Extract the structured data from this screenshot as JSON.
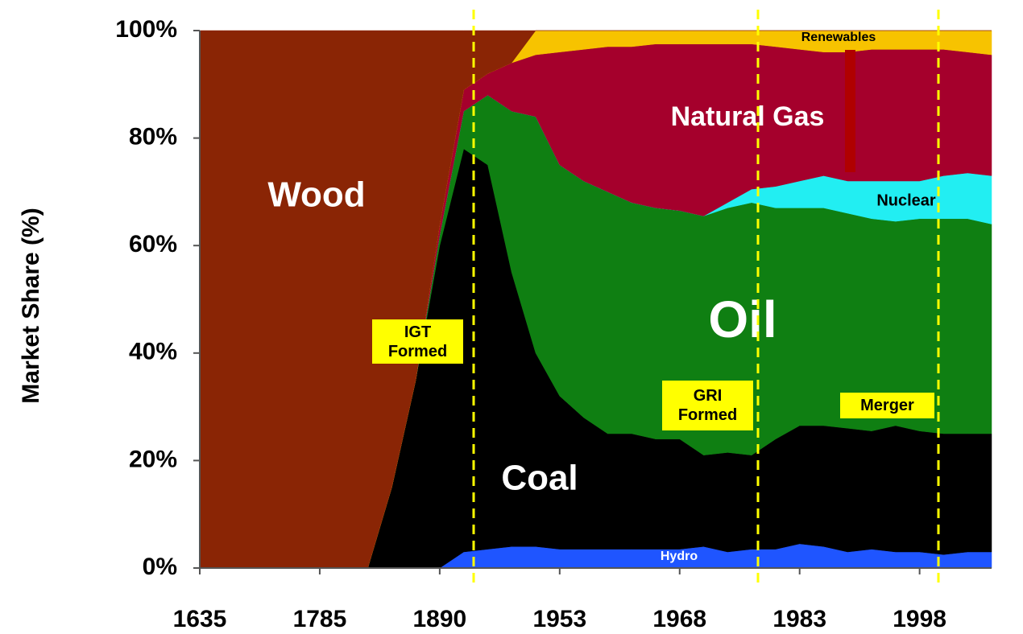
{
  "chart_data": {
    "type": "stacked_area",
    "y_label": "Market Share (%)",
    "categories": [
      "1635",
      null,
      null,
      null,
      null,
      "1785",
      null,
      null,
      null,
      null,
      "1890",
      null,
      null,
      null,
      null,
      "1953",
      null,
      null,
      null,
      null,
      "1968",
      null,
      null,
      null,
      null,
      "1983",
      null,
      null,
      null,
      null,
      "1998",
      null,
      null,
      null
    ],
    "series": [
      {
        "name": "Hydro",
        "color": "#1f55ff",
        "values": [
          0,
          0,
          0,
          0,
          0,
          0,
          0,
          0,
          0,
          0,
          0,
          3,
          3.5,
          4,
          4,
          3.5,
          3.5,
          3.5,
          3.5,
          3.5,
          3.5,
          4,
          3,
          3.5,
          3.5,
          4.5,
          4,
          3,
          3.5,
          3,
          3,
          2.5,
          3,
          3
        ]
      },
      {
        "name": "Coal",
        "color": "#000000",
        "values": [
          0,
          0,
          0,
          0,
          0,
          0,
          0,
          0,
          15,
          35,
          60,
          75,
          71.5,
          51,
          36,
          28.5,
          24.5,
          21.5,
          21.5,
          20.5,
          20.5,
          17,
          18.5,
          17.5,
          20.5,
          22,
          22.5,
          23,
          22,
          23.5,
          22.5,
          22.5,
          22,
          22
        ]
      },
      {
        "name": "Oil",
        "color": "#0f7f12",
        "values": [
          0,
          0,
          0,
          0,
          0,
          0,
          0,
          0,
          0,
          0,
          2,
          7,
          13,
          30,
          44,
          43,
          44,
          45,
          43,
          43,
          42.5,
          44.5,
          45.5,
          47,
          43,
          40.5,
          40.5,
          40,
          39.5,
          38,
          39.5,
          40,
          40,
          39
        ]
      },
      {
        "name": "Nuclear",
        "color": "#22eef2",
        "values": [
          0,
          0,
          0,
          0,
          0,
          0,
          0,
          0,
          0,
          0,
          0,
          0,
          0,
          0,
          0,
          0,
          0,
          0,
          0,
          0,
          0,
          0,
          1,
          2.5,
          4,
          5,
          6,
          6,
          7,
          7.5,
          7,
          8,
          8.5,
          9
        ]
      },
      {
        "name": "Natural Gas",
        "color": "#a5002c",
        "values": [
          0,
          0,
          0,
          0,
          0,
          0,
          0,
          0,
          0,
          0,
          2,
          4,
          4,
          9,
          11.5,
          21,
          24.5,
          27,
          29,
          30.5,
          31,
          32,
          29.5,
          27,
          26,
          24.5,
          23,
          24,
          24.5,
          24.5,
          24.5,
          23.5,
          22.5,
          22.5
        ]
      },
      {
        "name": "Renewables",
        "color": "#f7c300",
        "values": [
          0,
          0,
          0,
          0,
          0,
          0,
          0,
          0,
          0,
          0,
          0,
          0,
          0,
          0,
          4.5,
          4,
          3.5,
          3,
          3,
          2.5,
          2.5,
          2.5,
          2.5,
          2.5,
          3,
          3.5,
          4,
          4,
          3.5,
          3.5,
          3.5,
          3.5,
          4,
          4.5
        ]
      },
      {
        "name": "Wood",
        "color": "#8a2505",
        "values": [
          100,
          100,
          100,
          100,
          100,
          100,
          100,
          100,
          85,
          65,
          36,
          11,
          8,
          6,
          0,
          0,
          0,
          0,
          0,
          0,
          0,
          0,
          0,
          0,
          0,
          0,
          0,
          0,
          0,
          0,
          0,
          0,
          0,
          0
        ]
      }
    ],
    "ylim": [
      0,
      100
    ],
    "yticks": [
      {
        "value": 0,
        "label": "0%"
      },
      {
        "value": 20,
        "label": "20%"
      },
      {
        "value": 40,
        "label": "40%"
      },
      {
        "value": 60,
        "label": "60%"
      },
      {
        "value": 80,
        "label": "80%"
      },
      {
        "value": 100,
        "label": "100%"
      }
    ],
    "annotations": [
      {
        "text": "IGT Formed"
      },
      {
        "text": "GRI Formed"
      },
      {
        "text": "Merger"
      }
    ]
  }
}
